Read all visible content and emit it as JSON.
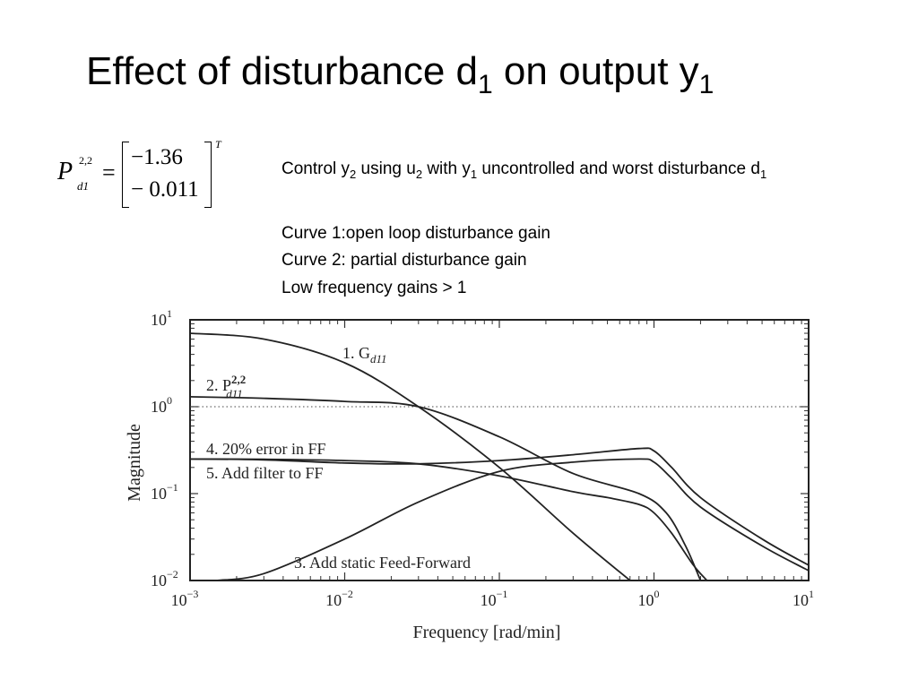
{
  "slide": {
    "title_main": "Effect of disturbance d",
    "title_sub1": "1",
    "title_mid": " on output y",
    "title_sub2": "1"
  },
  "matrix": {
    "symbol": "P",
    "superscript": "2,2",
    "subscript": "d1",
    "equals": "=",
    "entry1": "−1.36",
    "entry2": "− 0.011",
    "transpose": "T"
  },
  "notes": {
    "control": {
      "p1": "Control y",
      "s1": "2",
      "p2": " using u",
      "s2": "2",
      "p3": " with y",
      "s3": "1",
      "p4": " uncontrolled  and worst disturbance d",
      "s4": "1"
    },
    "curve1": "Curve 1:open loop disturbance gain",
    "curve2": "Curve 2: partial disturbance gain",
    "low_freq": "Low frequency gains > 1"
  },
  "chart_data": {
    "type": "line",
    "xscale": "log",
    "yscale": "log",
    "xlim": [
      0.001,
      10
    ],
    "ylim": [
      0.01,
      10
    ],
    "xlabel": "Frequency [rad/min]",
    "ylabel": "Magnitude",
    "x_ticks": [
      {
        "base": "10",
        "exp": "−3",
        "value": 0.001
      },
      {
        "base": "10",
        "exp": "−2",
        "value": 0.01
      },
      {
        "base": "10",
        "exp": "−1",
        "value": 0.1
      },
      {
        "base": "10",
        "exp": "0",
        "value": 1
      },
      {
        "base": "10",
        "exp": "1",
        "value": 10
      }
    ],
    "y_ticks": [
      {
        "base": "10",
        "exp": "−2",
        "value": 0.01
      },
      {
        "base": "10",
        "exp": "−1",
        "value": 0.1
      },
      {
        "base": "10",
        "exp": "0",
        "value": 1
      },
      {
        "base": "10",
        "exp": "1",
        "value": 10
      }
    ],
    "reference_line": {
      "y": 1,
      "style": "dotted"
    },
    "series": [
      {
        "name": "1. G_d11",
        "label_text": "1. G",
        "label_sub": "d11",
        "x": [
          0.001,
          0.003,
          0.01,
          0.03,
          0.1,
          0.3,
          0.7
        ],
        "y": [
          7.0,
          6.0,
          3.2,
          1.0,
          0.2,
          0.035,
          0.01
        ]
      },
      {
        "name": "2. P_d11^2,2",
        "label_text": "2. P",
        "label_sub": "d11",
        "label_sup": "2,2",
        "x": [
          0.001,
          0.003,
          0.01,
          0.03,
          0.1,
          0.3,
          0.8,
          1.2,
          1.6,
          2.0
        ],
        "y": [
          1.3,
          1.25,
          1.15,
          1.0,
          0.45,
          0.17,
          0.1,
          0.06,
          0.025,
          0.01
        ]
      },
      {
        "name": "3. Add static Feed-Forward",
        "label_text": "3. Add static Feed-Forward",
        "x": [
          0.0015,
          0.003,
          0.01,
          0.03,
          0.1,
          0.3,
          0.8,
          1.0,
          1.3,
          2.0,
          5.0,
          10.0
        ],
        "y": [
          0.01,
          0.012,
          0.03,
          0.08,
          0.18,
          0.23,
          0.25,
          0.23,
          0.15,
          0.07,
          0.025,
          0.013
        ]
      },
      {
        "name": "4. 20% error in FF",
        "label_text": "4. 20% error in FF",
        "x": [
          0.001,
          0.003,
          0.01,
          0.03,
          0.1,
          0.3,
          0.8,
          1.0,
          1.3,
          2.0,
          5.0,
          10.0
        ],
        "y": [
          0.25,
          0.245,
          0.225,
          0.22,
          0.24,
          0.28,
          0.33,
          0.31,
          0.2,
          0.09,
          0.03,
          0.015
        ]
      },
      {
        "name": "5. Add filter to FF",
        "label_text": "5. Add filter to FF",
        "x": [
          0.001,
          0.003,
          0.01,
          0.03,
          0.1,
          0.3,
          0.5,
          0.8,
          1.0,
          1.3,
          1.8,
          2.2
        ],
        "y": [
          0.25,
          0.248,
          0.24,
          0.22,
          0.16,
          0.105,
          0.09,
          0.075,
          0.06,
          0.035,
          0.015,
          0.01
        ]
      }
    ]
  }
}
